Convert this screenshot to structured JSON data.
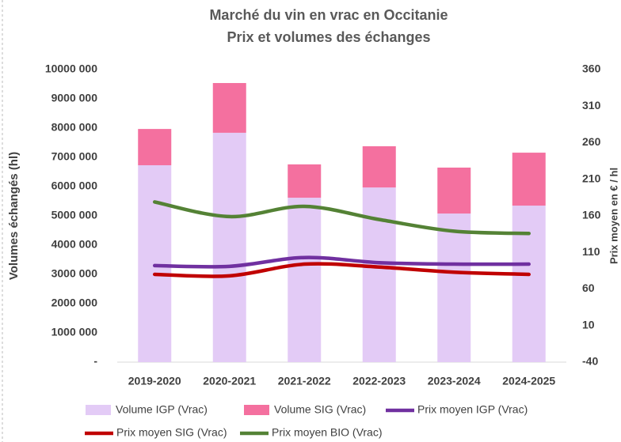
{
  "chart_data": {
    "type": "bar-line",
    "title": [
      "Marché du vin en vrac en Occitanie",
      "Prix et volumes des échanges"
    ],
    "y_label": "Volumes échangés (hl)",
    "y2_label": "Prix moyen en € / hl",
    "categories": [
      "2019-2020",
      "2020-2021",
      "2021-2022",
      "2022-2023",
      "2023-2024",
      "2024-2025"
    ],
    "series": [
      {
        "name": "Volume IGP (Vrac)",
        "kind": "bar",
        "color": "#e3cbf6",
        "values": [
          6730000,
          7840000,
          5620000,
          5970000,
          5080000,
          5350000
        ]
      },
      {
        "name": "Volume SIG (Vrac)",
        "kind": "bar",
        "color": "#f4709f",
        "values": [
          1240000,
          1700000,
          1140000,
          1410000,
          1570000,
          1810000
        ]
      },
      {
        "name": "Prix moyen IGP (Vrac)",
        "kind": "line",
        "axis": "y2",
        "color": "#7030a0",
        "values": [
          92,
          91,
          103,
          96,
          94,
          94
        ]
      },
      {
        "name": "Prix moyen SIG (Vrac)",
        "kind": "line",
        "axis": "y2",
        "color": "#c00000",
        "values": [
          80,
          78,
          94,
          90,
          83,
          80
        ]
      },
      {
        "name": "Prix moyen BIO (Vrac)",
        "kind": "line",
        "axis": "y2",
        "color": "#548235",
        "values": [
          179,
          159,
          173,
          155,
          139,
          136
        ]
      }
    ],
    "ylim": [
      0,
      10000000
    ],
    "yticks": [
      {
        "value": 0,
        "label": "-"
      },
      {
        "value": 1000000,
        "label": "1000 000"
      },
      {
        "value": 2000000,
        "label": "2000 000"
      },
      {
        "value": 3000000,
        "label": "3000 000"
      },
      {
        "value": 4000000,
        "label": "4000 000"
      },
      {
        "value": 5000000,
        "label": "5000 000"
      },
      {
        "value": 6000000,
        "label": "6000 000"
      },
      {
        "value": 7000000,
        "label": "7000 000"
      },
      {
        "value": 8000000,
        "label": "8000 000"
      },
      {
        "value": 9000000,
        "label": "9000 000"
      },
      {
        "value": 10000000,
        "label": "10000 000"
      }
    ],
    "y2lim": [
      -40,
      360
    ],
    "y2ticks": [
      -40,
      10,
      60,
      110,
      160,
      210,
      260,
      310,
      360
    ],
    "grid": false
  }
}
